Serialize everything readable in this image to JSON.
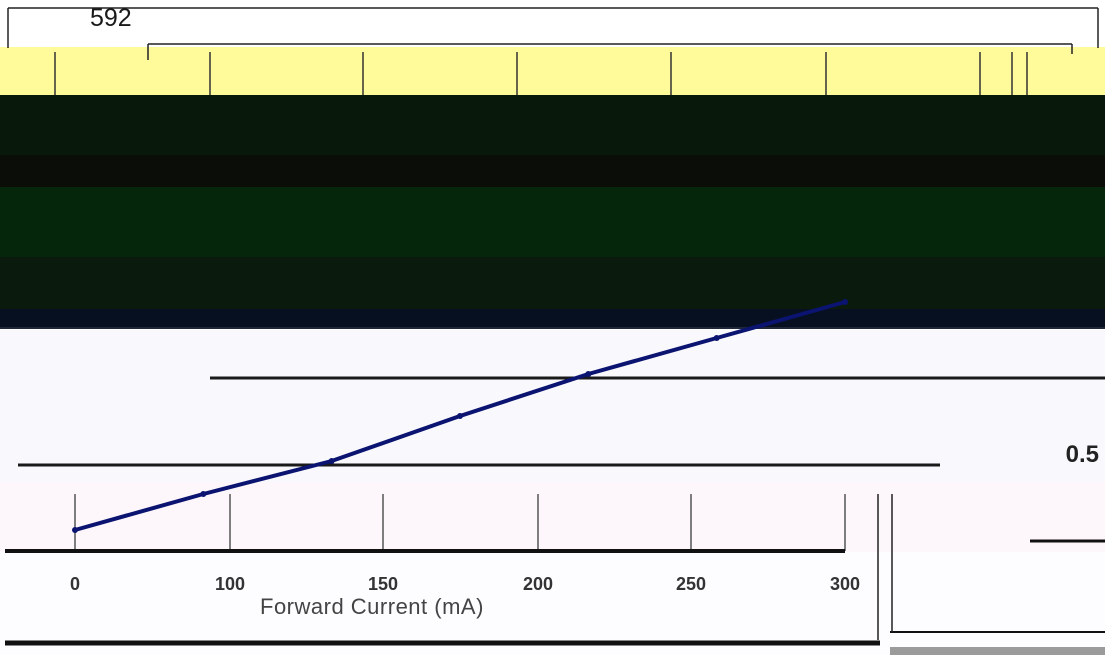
{
  "chart_data": {
    "type": "line",
    "title": "",
    "xlabel": "Forward Current (mA)",
    "ylabel": "",
    "x_ticks": [
      "0",
      "100",
      "150",
      "200",
      "250",
      "300"
    ],
    "top_value": "592",
    "right_value": "0.5",
    "series": [
      {
        "values": [
          [
            0,
            0.1
          ],
          [
            50,
            0.22
          ],
          [
            100,
            0.33
          ],
          [
            150,
            0.48
          ],
          [
            200,
            0.62
          ],
          [
            250,
            0.74
          ],
          [
            300,
            0.86
          ]
        ]
      }
    ],
    "grid": true,
    "legend": "none"
  },
  "colors": {
    "band_yellow": "#fffa9a",
    "band_dark": "#08190b",
    "line": "#0b1470"
  }
}
